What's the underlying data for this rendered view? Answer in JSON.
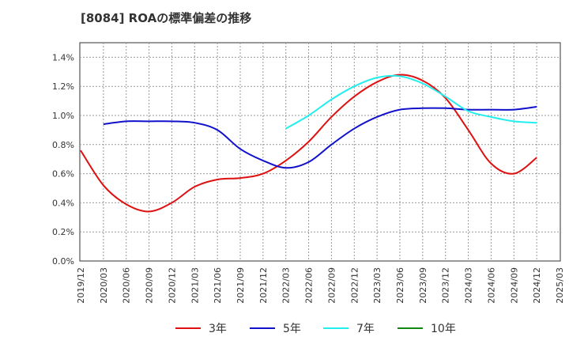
{
  "chart_data": {
    "type": "line",
    "title": "[8084]  ROAの標準偏差の推移",
    "xlabel": "",
    "ylabel": "",
    "ylim": [
      0,
      1.5
    ],
    "y_ticks": [
      0.0,
      0.2,
      0.4,
      0.6,
      0.8,
      1.0,
      1.2,
      1.4
    ],
    "y_tick_labels": [
      "0.0%",
      "0.2%",
      "0.4%",
      "0.6%",
      "0.8%",
      "1.0%",
      "1.2%",
      "1.4%"
    ],
    "x_tick_labels": [
      "2019/12",
      "2020/03",
      "2020/06",
      "2020/09",
      "2020/12",
      "2021/03",
      "2021/06",
      "2021/09",
      "2021/12",
      "2022/03",
      "2022/06",
      "2022/09",
      "2022/12",
      "2023/03",
      "2023/06",
      "2023/09",
      "2023/12",
      "2024/03",
      "2024/06",
      "2024/09",
      "2024/12",
      "2025/03"
    ],
    "grid": true,
    "legend_position": "bottom",
    "series": [
      {
        "name": "3年",
        "color": "#dd1111",
        "x": [
          "2019/12",
          "2020/03",
          "2020/06",
          "2020/09",
          "2020/12",
          "2021/03",
          "2021/06",
          "2021/09",
          "2021/12",
          "2022/03",
          "2022/06",
          "2022/09",
          "2022/12",
          "2023/03",
          "2023/06",
          "2023/09",
          "2023/12",
          "2024/03",
          "2024/06",
          "2024/09",
          "2024/12"
        ],
        "values": [
          0.76,
          0.52,
          0.39,
          0.34,
          0.4,
          0.51,
          0.56,
          0.57,
          0.6,
          0.69,
          0.82,
          0.99,
          1.13,
          1.23,
          1.28,
          1.24,
          1.12,
          0.9,
          0.67,
          0.6,
          0.71
        ]
      },
      {
        "name": "5年",
        "color": "#1111cc",
        "x": [
          "2020/03",
          "2020/06",
          "2020/09",
          "2020/12",
          "2021/03",
          "2021/06",
          "2021/09",
          "2021/12",
          "2022/03",
          "2022/06",
          "2022/09",
          "2022/12",
          "2023/03",
          "2023/06",
          "2023/09",
          "2023/12",
          "2024/03",
          "2024/06",
          "2024/09",
          "2024/12"
        ],
        "values": [
          0.94,
          0.96,
          0.96,
          0.96,
          0.95,
          0.9,
          0.77,
          0.69,
          0.64,
          0.68,
          0.8,
          0.91,
          0.99,
          1.04,
          1.05,
          1.05,
          1.04,
          1.04,
          1.04,
          1.06
        ]
      },
      {
        "name": "7年",
        "color": "#22eeee",
        "x": [
          "2022/03",
          "2022/06",
          "2022/09",
          "2022/12",
          "2023/03",
          "2023/06",
          "2023/09",
          "2023/12",
          "2024/03",
          "2024/06",
          "2024/09",
          "2024/12"
        ],
        "values": [
          0.91,
          1.0,
          1.11,
          1.2,
          1.26,
          1.27,
          1.22,
          1.13,
          1.03,
          0.99,
          0.96,
          0.95
        ]
      },
      {
        "name": "10年",
        "color": "#118811",
        "x": [],
        "values": []
      }
    ]
  }
}
